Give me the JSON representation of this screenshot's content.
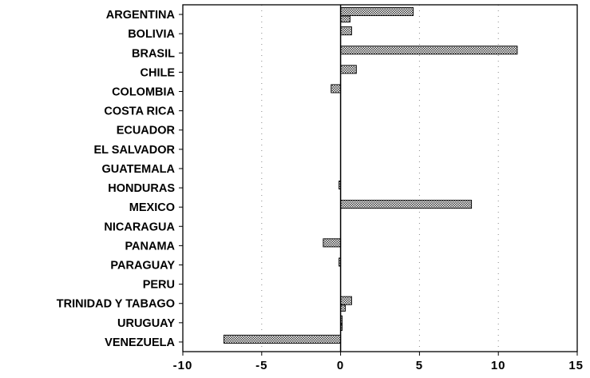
{
  "chart_data": {
    "type": "bar",
    "orientation": "horizontal",
    "title": "",
    "xlabel": "",
    "ylabel": "",
    "categories": [
      "ARGENTINA",
      "BOLIVIA",
      "BRASIL",
      "CHILE",
      "COLOMBIA",
      "COSTA RICA",
      "ECUADOR",
      "EL SALVADOR",
      "GUATEMALA",
      "HONDURAS",
      "MEXICO",
      "NICARAGUA",
      "PANAMA",
      "PARAGUAY",
      "PERU",
      "TRINIDAD Y TABAGO",
      "URUGUAY",
      "VENEZUELA"
    ],
    "series": [
      {
        "values": [
          4.6,
          0.7,
          11.2,
          1.0,
          -0.6,
          0.0,
          0.0,
          0.0,
          0.0,
          -0.1,
          8.3,
          0.0,
          -1.1,
          -0.1,
          0.0,
          0.7,
          0.1,
          -7.4
        ]
      },
      {
        "values": [
          0.6,
          0,
          0,
          0,
          0,
          0,
          0,
          0,
          0,
          0,
          0,
          0,
          0,
          0,
          0,
          0.3,
          0.1,
          0
        ]
      }
    ],
    "xlim": [
      -10,
      15
    ],
    "xticks": [
      -10,
      -5,
      0,
      5,
      10,
      15
    ],
    "xtick_labels": [
      "-10",
      "-5",
      "0",
      "5",
      "10",
      "15"
    ],
    "grid": true,
    "colors": {
      "bar": "#4a4a4a",
      "axis": "#000000",
      "grid": "#888888"
    }
  }
}
